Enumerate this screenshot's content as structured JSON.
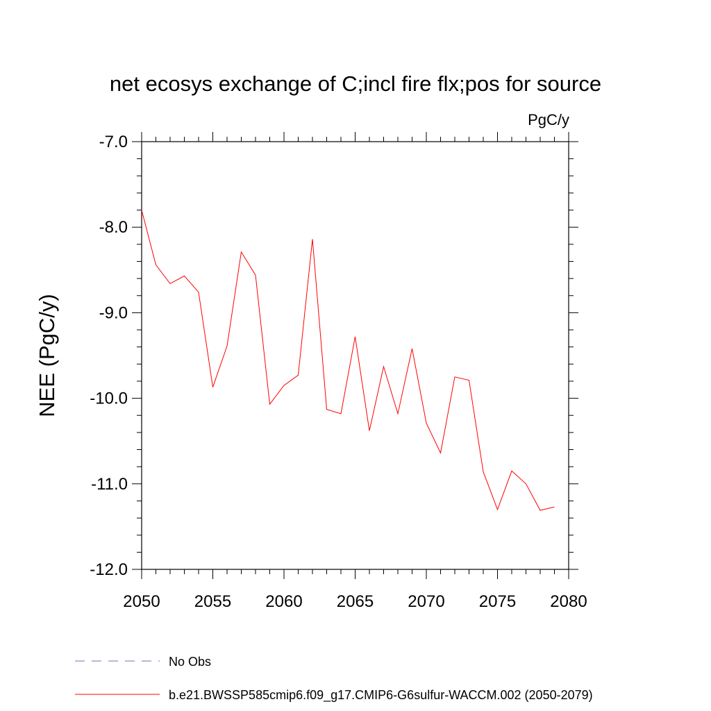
{
  "chart_data": {
    "type": "line",
    "title": "net ecosys exchange of C;incl fire flx;pos for source",
    "units": "PgC/y",
    "ylabel": "NEE  (PgC/y)",
    "xlabel": "",
    "xlim": [
      2050,
      2080
    ],
    "ylim": [
      -12.0,
      -7.0
    ],
    "xticks": [
      2050,
      2055,
      2060,
      2065,
      2070,
      2075,
      2080
    ],
    "xtick_labels": [
      "2050",
      "2055",
      "2060",
      "2065",
      "2070",
      "2075",
      "2080"
    ],
    "yticks": [
      -7.0,
      -8.0,
      -9.0,
      -10.0,
      -11.0,
      -12.0
    ],
    "ytick_labels": [
      "-7.0",
      "-8.0",
      "-9.0",
      "-10.0",
      "-11.0",
      "-12.0"
    ],
    "grid": false,
    "legend_position": "bottom-left",
    "series": [
      {
        "name": "b.e21.BWSSP585cmip6.f09_g17.CMIP6-G6sulfur-WACCM.002 (2050-2079)",
        "color": "#ff0000",
        "x": [
          2050,
          2051,
          2052,
          2053,
          2054,
          2055,
          2056,
          2057,
          2058,
          2059,
          2060,
          2061,
          2062,
          2063,
          2064,
          2065,
          2066,
          2067,
          2068,
          2069,
          2070,
          2071,
          2072,
          2073,
          2074,
          2075,
          2076,
          2077,
          2078,
          2079
        ],
        "y": [
          -7.8,
          -8.44,
          -8.66,
          -8.57,
          -8.76,
          -9.87,
          -9.39,
          -8.29,
          -8.56,
          -10.07,
          -9.85,
          -9.73,
          -8.14,
          -10.13,
          -10.18,
          -9.28,
          -10.38,
          -9.63,
          -10.18,
          -9.42,
          -10.29,
          -10.64,
          -9.75,
          -9.79,
          -10.86,
          -11.3,
          -10.85,
          -11.0,
          -11.31,
          -11.27
        ]
      }
    ],
    "legend": [
      {
        "label": "No Obs",
        "style": "dashed",
        "color": "#7b6fb0"
      },
      {
        "label": "b.e21.BWSSP585cmip6.f09_g17.CMIP6-G6sulfur-WACCM.002 (2050-2079)",
        "style": "solid",
        "color": "#ff0000"
      }
    ]
  }
}
